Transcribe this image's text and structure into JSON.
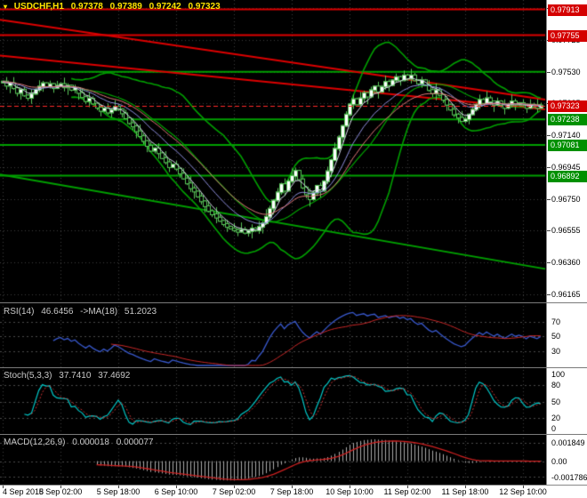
{
  "title": {
    "symbol_period": "USDCHF,H1",
    "open": "0.97378",
    "high": "0.97389",
    "low": "0.97242",
    "close": "0.97323"
  },
  "colors": {
    "grid": "#3c3c3c",
    "bull_candle": "#ffffff",
    "bear_candle": "#000000",
    "candle_border": "#58c558",
    "bollinger": "#00a000",
    "green_level": "#00a000",
    "red_level": "#dd0000",
    "rsi": "#3858cc",
    "rsi_ma": "#c82828",
    "stoch_k": "#00c8c8",
    "stoch_d": "#cc3333",
    "macd_hist": "#aaaaaa",
    "macd_signal": "#cc2020",
    "badge_red": "#d40000",
    "badge_green": "#009000"
  },
  "price_axis": {
    "grid_labels": [
      {
        "text": "0.97920",
        "price": 0.9792
      },
      {
        "text": "0.97725",
        "price": 0.97725
      },
      {
        "text": "0.97530",
        "price": 0.9753
      },
      {
        "text": "0.97335",
        "price": 0.97335
      },
      {
        "text": "0.97140",
        "price": 0.9714
      },
      {
        "text": "0.96945",
        "price": 0.96945
      },
      {
        "text": "0.96750",
        "price": 0.9675
      },
      {
        "text": "0.96555",
        "price": 0.96555
      },
      {
        "text": "0.96360",
        "price": 0.9636
      },
      {
        "text": "0.96165",
        "price": 0.96165
      }
    ],
    "badges": [
      {
        "text": "0.97913",
        "price": 0.97913,
        "color": "red"
      },
      {
        "text": "0.97755",
        "price": 0.97755,
        "color": "red"
      },
      {
        "text": "0.97323",
        "price": 0.97323,
        "color": "red"
      },
      {
        "text": "0.97238",
        "price": 0.97238,
        "color": "green"
      },
      {
        "text": "0.97081",
        "price": 0.97081,
        "color": "green"
      },
      {
        "text": "0.96892",
        "price": 0.96892,
        "color": "green"
      }
    ]
  },
  "levels": {
    "red_horizontal": [
      0.97913,
      0.97755
    ],
    "green_horizontal": [
      0.9753,
      0.97238,
      0.97081,
      0.96892
    ],
    "red_trend_lines": [
      {
        "p1": 0.9785,
        "p2": 0.9736
      },
      {
        "p1": 0.9763,
        "p2": 0.973
      }
    ],
    "green_trend_lines": [
      {
        "p1": 0.969,
        "p2": 0.9632
      }
    ]
  },
  "indicators": {
    "rsi": {
      "label": "RSI(14)",
      "value": "46.6456",
      "ma_label": "->MA(18)",
      "ma_value": "51.2023",
      "levels": [
        70,
        50,
        30
      ]
    },
    "stoch": {
      "label": "Stoch(5,3,3)",
      "k_value": "37.7410",
      "d_value": "37.4692",
      "levels": [
        80,
        50,
        20
      ],
      "axis_labels": [
        {
          "text": "100",
          "value": 100
        },
        {
          "text": "80",
          "value": 80
        },
        {
          "text": "50",
          "value": 50
        },
        {
          "text": "20",
          "value": 20
        },
        {
          "text": "0",
          "value": 0
        }
      ]
    },
    "macd": {
      "label": "MACD(12,26,9)",
      "value": "0.000018",
      "signal_value": "0.000077",
      "axis_labels": {
        "top": "0.001849",
        "zero": "0.00",
        "bottom": "-0.001786"
      }
    }
  },
  "chart_data": {
    "type": "candlestick",
    "symbol": "USDCHF",
    "timeframe": "H1",
    "title": "USDCHF,H1 0.97378 0.97389 0.97242 0.97323",
    "price_top": 0.9796,
    "price_bottom": 0.9612,
    "current_price": 0.97323,
    "grid": true,
    "x_labels": [
      {
        "text": "4 Sep 2018",
        "bar": 0
      },
      {
        "text": "5 Sep 02:00",
        "bar": 16
      },
      {
        "text": "5 Sep 18:00",
        "bar": 32
      },
      {
        "text": "6 Sep 10:00",
        "bar": 48
      },
      {
        "text": "7 Sep 02:00",
        "bar": 64
      },
      {
        "text": "7 Sep 18:00",
        "bar": 80
      },
      {
        "text": "10 Sep 10:00",
        "bar": 96
      },
      {
        "text": "11 Sep 02:00",
        "bar": 112
      },
      {
        "text": "11 Sep 18:00",
        "bar": 128
      },
      {
        "text": "12 Sep 10:00",
        "bar": 144
      }
    ],
    "closes": [
      0.9747,
      0.97445,
      0.9746,
      0.9743,
      0.974,
      0.9742,
      0.97385,
      0.9737,
      0.97395,
      0.9742,
      0.9744,
      0.9746,
      0.9744,
      0.97455,
      0.9743,
      0.97445,
      0.97455,
      0.97435,
      0.97445,
      0.9742,
      0.9743,
      0.974,
      0.97375,
      0.9735,
      0.97365,
      0.97335,
      0.9731,
      0.9729,
      0.97305,
      0.9728,
      0.97295,
      0.97315,
      0.973,
      0.97275,
      0.97245,
      0.97215,
      0.97195,
      0.97165,
      0.97135,
      0.97105,
      0.97075,
      0.97045,
      0.9706,
      0.9703,
      0.97,
      0.96975,
      0.96945,
      0.9696,
      0.96935,
      0.96905,
      0.96875,
      0.96845,
      0.96815,
      0.96795,
      0.96765,
      0.96735,
      0.96705,
      0.96675,
      0.96655,
      0.96635,
      0.96615,
      0.96595,
      0.96578,
      0.96568,
      0.96558,
      0.96548,
      0.9656,
      0.96542,
      0.96552,
      0.96568,
      0.96556,
      0.96578,
      0.966,
      0.9664,
      0.9669,
      0.9674,
      0.9679,
      0.9684,
      0.968,
      0.96858,
      0.9689,
      0.96922,
      0.9687,
      0.9682,
      0.96778,
      0.96748,
      0.96788,
      0.9683,
      0.968,
      0.96858,
      0.9692,
      0.96988,
      0.97058,
      0.97128,
      0.97198,
      0.97268,
      0.9733,
      0.97362,
      0.9733,
      0.97368,
      0.974,
      0.97378,
      0.97418,
      0.9744,
      0.97408,
      0.97438,
      0.97468,
      0.97448,
      0.97478,
      0.97498,
      0.97478,
      0.97508,
      0.97488,
      0.97508,
      0.97478,
      0.97458,
      0.97478,
      0.97448,
      0.97418,
      0.97398,
      0.97418,
      0.97388,
      0.97358,
      0.97328,
      0.97298,
      0.97268,
      0.97248,
      0.97228,
      0.97238,
      0.97268,
      0.97298,
      0.97328,
      0.97358,
      0.97338,
      0.97368,
      0.97348,
      0.97328,
      0.97348,
      0.97328,
      0.97308,
      0.97328,
      0.97348,
      0.97328,
      0.97338,
      0.97328,
      0.97308,
      0.97328,
      0.97318,
      0.97308,
      0.97323
    ],
    "indicator_panels": [
      "RSI(14) + MA(18)",
      "Stochastic(5,3,3)",
      "MACD(12,26,9)"
    ]
  }
}
